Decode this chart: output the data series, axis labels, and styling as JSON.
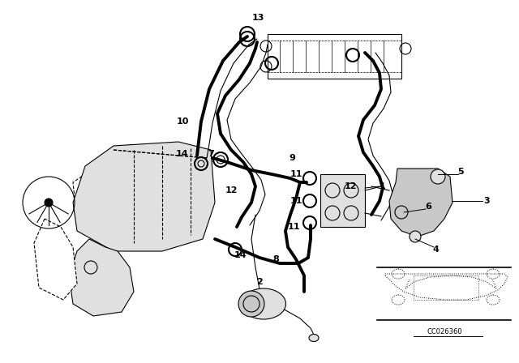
{
  "bg_color": "#ffffff",
  "line_color": "#000000",
  "diagram_title": "CC026360",
  "lw_thick": 2.8,
  "lw_med": 1.5,
  "lw_thin": 0.8,
  "fs_label": 8
}
